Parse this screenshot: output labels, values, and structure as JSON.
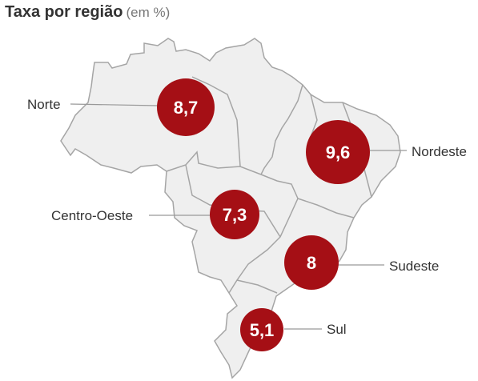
{
  "title": {
    "main": "Taxa por região",
    "sub": "(em %)"
  },
  "colors": {
    "bubble": "#a50f15",
    "map_fill": "#efefef",
    "map_stroke": "#a5a5a5",
    "leader": "#999999"
  },
  "regions": [
    {
      "name": "Norte",
      "value": "8,7"
    },
    {
      "name": "Nordeste",
      "value": "9,6"
    },
    {
      "name": "Centro-Oeste",
      "value": "7,3"
    },
    {
      "name": "Sudeste",
      "value": "8"
    },
    {
      "name": "Sul",
      "value": "5,1"
    }
  ]
}
